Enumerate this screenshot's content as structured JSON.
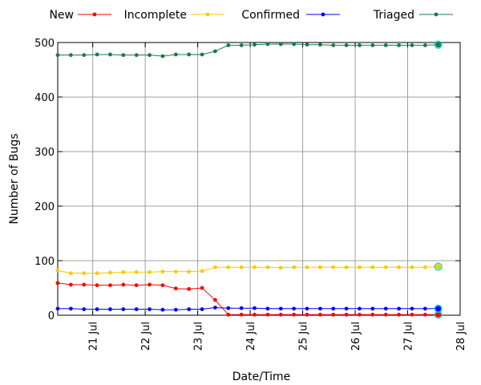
{
  "chart_data": {
    "type": "line",
    "title": "",
    "xlabel": "Date/Time",
    "ylabel": "Number of Bugs",
    "xlim": [
      "2010-07-20T08:00",
      "2010-07-28T00:00"
    ],
    "ylim": [
      0,
      500
    ],
    "yticks": [
      0,
      100,
      200,
      300,
      400,
      500
    ],
    "xticks": [
      {
        "value": "2010-07-21T00:00",
        "label": "21 Jul"
      },
      {
        "value": "2010-07-22T00:00",
        "label": "22 Jul"
      },
      {
        "value": "2010-07-23T00:00",
        "label": "23 Jul"
      },
      {
        "value": "2010-07-24T00:00",
        "label": "24 Jul"
      },
      {
        "value": "2010-07-25T00:00",
        "label": "25 Jul"
      },
      {
        "value": "2010-07-26T00:00",
        "label": "26 Jul"
      },
      {
        "value": "2010-07-27T00:00",
        "label": "27 Jul"
      },
      {
        "value": "2010-07-28T00:00",
        "label": "28 Jul"
      }
    ],
    "grid": true,
    "legend_position": "top",
    "x": [
      "2010-07-20T08:00",
      "2010-07-20T14:00",
      "2010-07-20T20:00",
      "2010-07-21T02:00",
      "2010-07-21T08:00",
      "2010-07-21T14:00",
      "2010-07-21T20:00",
      "2010-07-22T02:00",
      "2010-07-22T08:00",
      "2010-07-22T14:00",
      "2010-07-22T20:00",
      "2010-07-23T02:00",
      "2010-07-23T08:00",
      "2010-07-23T14:00",
      "2010-07-23T20:00",
      "2010-07-24T02:00",
      "2010-07-24T08:00",
      "2010-07-24T14:00",
      "2010-07-24T20:00",
      "2010-07-25T02:00",
      "2010-07-25T08:00",
      "2010-07-25T14:00",
      "2010-07-25T20:00",
      "2010-07-26T02:00",
      "2010-07-26T08:00",
      "2010-07-26T14:00",
      "2010-07-26T20:00",
      "2010-07-27T02:00",
      "2010-07-27T08:00",
      "2010-07-27T14:00"
    ],
    "series": [
      {
        "name": "New",
        "color": "#ff0000",
        "values": [
          59,
          56,
          56,
          55,
          55,
          56,
          55,
          56,
          55,
          49,
          48,
          50,
          28,
          1,
          1,
          1,
          1,
          1,
          1,
          1,
          1,
          1,
          1,
          1,
          1,
          1,
          1,
          1,
          1,
          1
        ]
      },
      {
        "name": "Incomplete",
        "color": "#ffc800",
        "values": [
          82,
          77,
          77,
          77,
          78,
          79,
          79,
          79,
          80,
          80,
          80,
          81,
          88,
          88,
          88,
          88,
          88,
          87,
          88,
          88,
          88,
          88,
          88,
          88,
          88,
          88,
          88,
          88,
          88,
          89
        ]
      },
      {
        "name": "Confirmed",
        "color": "#0000ff",
        "values": [
          12,
          12,
          11,
          11,
          11,
          11,
          11,
          11,
          10,
          10,
          11,
          11,
          14,
          13,
          13,
          13,
          12,
          12,
          12,
          12,
          12,
          12,
          12,
          12,
          12,
          12,
          12,
          12,
          12,
          12
        ]
      },
      {
        "name": "Triaged",
        "color": "#1a7a4a",
        "values": [
          477,
          477,
          477,
          478,
          478,
          477,
          477,
          477,
          475,
          478,
          478,
          478,
          484,
          495,
          495,
          496,
          497,
          497,
          497,
          496,
          496,
          495,
          495,
          495,
          495,
          495,
          495,
          495,
          495,
          496
        ]
      }
    ]
  }
}
